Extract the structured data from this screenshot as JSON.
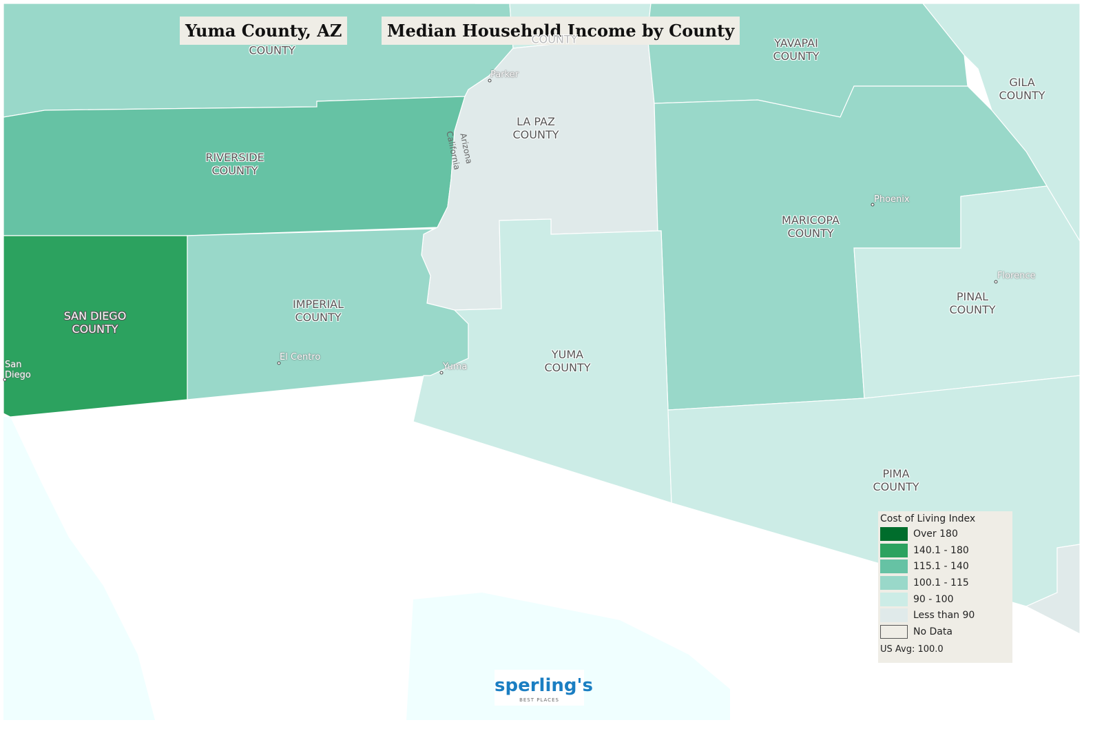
{
  "header": {
    "title": "Yuma County, AZ",
    "subtitle": "Median Household Income by County"
  },
  "counties": [
    {
      "label": "COUNTY"
    },
    {
      "label": "COUNTY"
    },
    {
      "label": "YAVAPAI COUNTY"
    },
    {
      "label": "GILA COUNTY"
    },
    {
      "label": "LA PAZ COUNTY"
    },
    {
      "label": "RIVERSIDE COUNTY"
    },
    {
      "label": "MARICOPA COUNTY"
    },
    {
      "label": "PINAL COUNTY"
    },
    {
      "label": "SAN DIEGO COUNTY"
    },
    {
      "label": "IMPERIAL COUNTY"
    },
    {
      "label": "YUMA COUNTY"
    },
    {
      "label": "PIMA COUNTY"
    }
  ],
  "cities": [
    {
      "label": "Parker"
    },
    {
      "label": "Phoenix"
    },
    {
      "label": "Florence"
    },
    {
      "label": "El Centro"
    },
    {
      "label": "San Diego"
    },
    {
      "label": "Yuma"
    }
  ],
  "state_labels": [
    "Arizona",
    "California"
  ],
  "legend": {
    "title": "Cost of Living Index",
    "items": [
      {
        "label": "Over 180",
        "color": "#006d2c"
      },
      {
        "label": "140.1 - 180",
        "color": "#2ca25f"
      },
      {
        "label": "115.1 - 140",
        "color": "#66c2a4"
      },
      {
        "label": "100.1 - 115",
        "color": "#99d8c9"
      },
      {
        "label": "90 - 100",
        "color": "#ccece6"
      },
      {
        "label": "Less than 90",
        "color": "#e0eaea"
      },
      {
        "label": "No Data",
        "color": "#efede6"
      }
    ],
    "note": "US Avg: 100.0"
  },
  "logo": {
    "name": "sperling's",
    "tagline": "BEST PLACES"
  }
}
